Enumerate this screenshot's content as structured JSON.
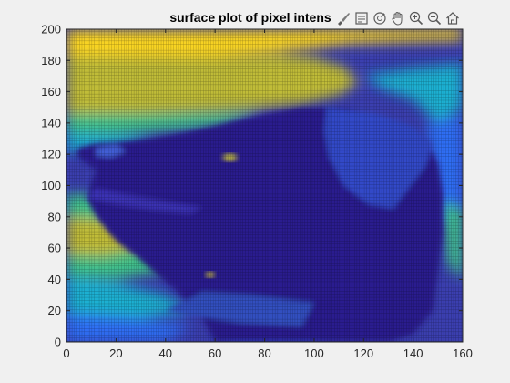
{
  "figure": {
    "background_color": "#f0f0f0"
  },
  "toolbar": {
    "buttons": [
      {
        "icon": "brush-icon"
      },
      {
        "icon": "legend-icon"
      },
      {
        "icon": "rotate-3d-icon"
      },
      {
        "icon": "pan-hand-icon"
      },
      {
        "icon": "zoom-in-icon"
      },
      {
        "icon": "zoom-out-icon"
      },
      {
        "icon": "home-icon"
      }
    ]
  },
  "chart_data": {
    "type": "heatmap",
    "title": "surface plot of pixel intens",
    "xlabel": "",
    "ylabel": "",
    "xlim": [
      0,
      160
    ],
    "ylim": [
      0,
      200
    ],
    "x_ticks": [
      "0",
      "20",
      "40",
      "60",
      "80",
      "100",
      "120",
      "140",
      "160"
    ],
    "y_ticks": [
      "0",
      "20",
      "40",
      "60",
      "80",
      "100",
      "120",
      "140",
      "160",
      "180",
      "200"
    ],
    "colormap": "parula",
    "colormap_stops": [
      "#3e26a8",
      "#2d6ef4",
      "#1fb0d2",
      "#3fc28c",
      "#c0bc38",
      "#f9d424"
    ],
    "grid_edge_color": "#000000",
    "content": "mesh surface viewed from above showing pixel intensities of a dog's head in profile facing left"
  }
}
